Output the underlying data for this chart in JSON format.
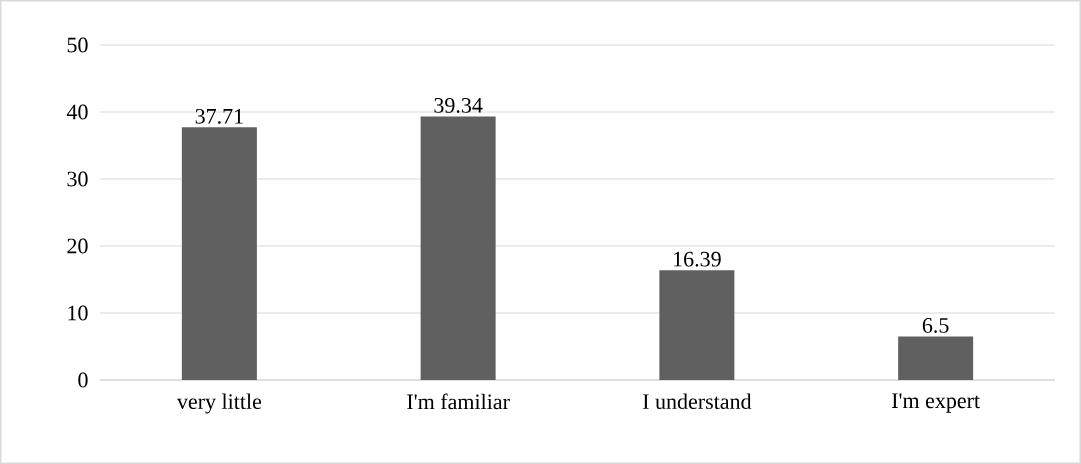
{
  "chart_data": {
    "type": "bar",
    "categories": [
      "very little",
      "I'm familiar",
      "I understand",
      "I'm expert"
    ],
    "values": [
      37.71,
      39.34,
      16.39,
      6.5
    ],
    "color": "#606060",
    "ylim": [
      0,
      50
    ],
    "yticks": [
      0,
      10,
      20,
      30,
      40,
      50
    ],
    "grid": "y",
    "data_labels": true
  }
}
